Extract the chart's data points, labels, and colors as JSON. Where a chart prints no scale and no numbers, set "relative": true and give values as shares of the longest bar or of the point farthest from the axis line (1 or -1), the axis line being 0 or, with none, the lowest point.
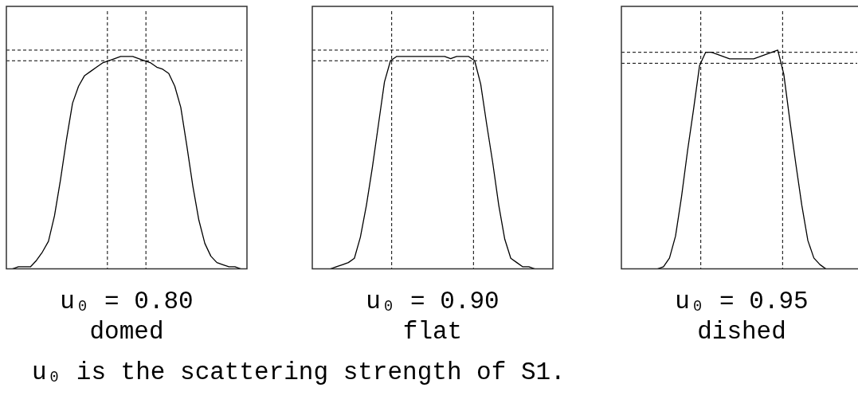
{
  "chart_data": [
    {
      "type": "line",
      "relative": true,
      "xlabel": "u₀ = 0.80",
      "annotations": [
        "domed"
      ],
      "marker": "none",
      "line_style": "solid",
      "categories": [
        null,
        null,
        null,
        null,
        null,
        null,
        null,
        null,
        null,
        null,
        null,
        null,
        null,
        null,
        null,
        null,
        null,
        null,
        null,
        null,
        null,
        null,
        null,
        null,
        null,
        null,
        null,
        null,
        null,
        null,
        null,
        null,
        null,
        null,
        null,
        null,
        null,
        null,
        null,
        null,
        null
      ],
      "series": [
        {
          "color": "#000000",
          "values": [
            0,
            0,
            0.01,
            0.01,
            0.01,
            0.04,
            0.08,
            0.13,
            0.25,
            0.42,
            0.61,
            0.78,
            0.86,
            0.91,
            0.93,
            0.95,
            0.97,
            0.98,
            0.99,
            1,
            1,
            1,
            0.99,
            0.98,
            0.97,
            0.95,
            0.94,
            0.92,
            0.86,
            0.76,
            0.58,
            0.39,
            0.23,
            0.12,
            0.06,
            0.03,
            0.02,
            0.01,
            0.01,
            0,
            0
          ]
        }
      ],
      "ref_lines": [
        {
          "axis": "y",
          "value": 1.03,
          "line_style": "dashed"
        },
        {
          "axis": "y",
          "value": 0.98,
          "line_style": "dashed"
        }
      ]
    },
    {
      "type": "line",
      "relative": true,
      "xlabel": "u₀ = 0.90",
      "annotations": [
        "flat"
      ],
      "marker": "none",
      "line_style": "solid",
      "categories": [
        null,
        null,
        null,
        null,
        null,
        null,
        null,
        null,
        null,
        null,
        null,
        null,
        null,
        null,
        null,
        null,
        null,
        null,
        null,
        null,
        null,
        null,
        null,
        null,
        null,
        null,
        null,
        null,
        null,
        null,
        null,
        null,
        null,
        null,
        null,
        null,
        null,
        null,
        null,
        null,
        null
      ],
      "series": [
        {
          "color": "#000000",
          "values": [
            0,
            0,
            0,
            0,
            0.01,
            0.02,
            0.03,
            0.05,
            0.15,
            0.3,
            0.48,
            0.68,
            0.88,
            0.98,
            1,
            1,
            1,
            1,
            1,
            1,
            1,
            1,
            1,
            0.99,
            1,
            1,
            1,
            0.98,
            0.87,
            0.68,
            0.5,
            0.3,
            0.14,
            0.05,
            0.03,
            0.01,
            0.01,
            0,
            0,
            0,
            0
          ]
        }
      ],
      "ref_lines": [
        {
          "axis": "y",
          "value": 1.03,
          "line_style": "dashed"
        },
        {
          "axis": "y",
          "value": 0.98,
          "line_style": "dashed"
        }
      ]
    },
    {
      "type": "line",
      "relative": true,
      "xlabel": "u₀ = 0.95",
      "annotations": [
        "dished"
      ],
      "marker": "none",
      "line_style": "solid",
      "categories": [
        null,
        null,
        null,
        null,
        null,
        null,
        null,
        null,
        null,
        null,
        null,
        null,
        null,
        null,
        null,
        null,
        null,
        null,
        null,
        null,
        null,
        null,
        null,
        null,
        null,
        null,
        null,
        null,
        null,
        null,
        null,
        null,
        null,
        null,
        null,
        null,
        null,
        null,
        null,
        null,
        null
      ],
      "series": [
        {
          "color": "#000000",
          "values": [
            0,
            0,
            0,
            0,
            0,
            0,
            0,
            0.01,
            0.05,
            0.15,
            0.33,
            0.54,
            0.73,
            0.93,
            0.99,
            0.99,
            0.98,
            0.97,
            0.96,
            0.96,
            0.96,
            0.96,
            0.96,
            0.97,
            0.98,
            0.99,
            1,
            0.89,
            0.68,
            0.48,
            0.29,
            0.13,
            0.05,
            0.02,
            0,
            0,
            0,
            0,
            0,
            0,
            0
          ]
        }
      ],
      "ref_lines": [
        {
          "axis": "y",
          "value": 0.99,
          "line_style": "dashed"
        },
        {
          "axis": "y",
          "value": 0.94,
          "line_style": "dashed"
        }
      ]
    },
    {
      "type": "other",
      "annotations": [
        "u₀ is the scattering strength of S1."
      ]
    }
  ]
}
